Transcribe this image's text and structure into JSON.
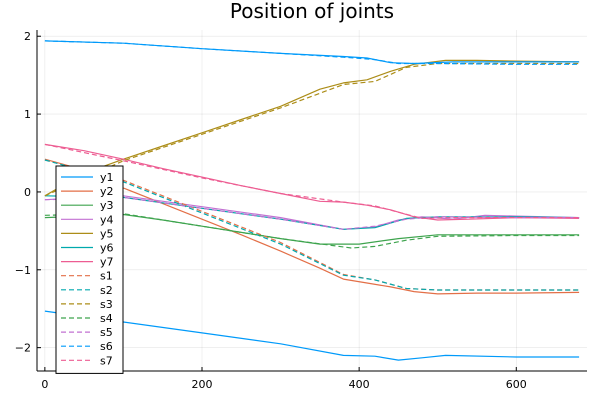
{
  "chart_data": {
    "type": "line",
    "title": "Position of joints",
    "xlabel": "",
    "ylabel": "",
    "xlim": [
      -10,
      690
    ],
    "ylim": [
      -2.3,
      2.08
    ],
    "xticks": [
      0,
      200,
      400,
      600
    ],
    "yticks": [
      -2,
      -1,
      0,
      1,
      2
    ],
    "xtick_labels": [
      "0",
      "200",
      "400",
      "600"
    ],
    "ytick_labels": [
      "−2",
      "−1",
      "0",
      "1",
      "2"
    ],
    "grid": true,
    "legend_position": "bottom-left",
    "series": [
      {
        "name": "y1",
        "color": "#009AFA",
        "dash": "solid",
        "points": [
          [
            0,
            -1.53
          ],
          [
            100,
            -1.67
          ],
          [
            200,
            -1.81
          ],
          [
            300,
            -1.95
          ],
          [
            380,
            -2.1
          ],
          [
            420,
            -2.11
          ],
          [
            450,
            -2.16
          ],
          [
            480,
            -2.13
          ],
          [
            510,
            -2.1
          ],
          [
            600,
            -2.12
          ],
          [
            680,
            -2.12
          ]
        ]
      },
      {
        "name": "y2",
        "color": "#E36F47",
        "dash": "solid",
        "points": [
          [
            0,
            0.42
          ],
          [
            50,
            0.28
          ],
          [
            100,
            0.05
          ],
          [
            150,
            -0.15
          ],
          [
            200,
            -0.35
          ],
          [
            250,
            -0.55
          ],
          [
            300,
            -0.76
          ],
          [
            350,
            -0.98
          ],
          [
            380,
            -1.12
          ],
          [
            410,
            -1.17
          ],
          [
            440,
            -1.22
          ],
          [
            470,
            -1.28
          ],
          [
            500,
            -1.31
          ],
          [
            550,
            -1.3
          ],
          [
            600,
            -1.3
          ],
          [
            680,
            -1.29
          ]
        ]
      },
      {
        "name": "y3",
        "color": "#3EA44E",
        "dash": "solid",
        "points": [
          [
            0,
            -0.33
          ],
          [
            100,
            -0.29
          ],
          [
            150,
            -0.36
          ],
          [
            200,
            -0.44
          ],
          [
            250,
            -0.52
          ],
          [
            300,
            -0.6
          ],
          [
            350,
            -0.67
          ],
          [
            400,
            -0.67
          ],
          [
            450,
            -0.6
          ],
          [
            500,
            -0.55
          ],
          [
            550,
            -0.55
          ],
          [
            600,
            -0.55
          ],
          [
            680,
            -0.55
          ]
        ]
      },
      {
        "name": "y4",
        "color": "#C271D2",
        "dash": "solid",
        "points": [
          [
            0,
            -0.1
          ],
          [
            100,
            -0.05
          ],
          [
            200,
            -0.19
          ],
          [
            300,
            -0.33
          ],
          [
            380,
            -0.48
          ],
          [
            420,
            -0.45
          ],
          [
            450,
            -0.36
          ],
          [
            480,
            -0.32
          ],
          [
            520,
            -0.35
          ],
          [
            560,
            -0.3
          ],
          [
            600,
            -0.31
          ],
          [
            680,
            -0.33
          ]
        ]
      },
      {
        "name": "y5",
        "color": "#AC8D18",
        "dash": "solid",
        "points": [
          [
            0,
            -0.05
          ],
          [
            50,
            0.24
          ],
          [
            100,
            0.42
          ],
          [
            150,
            0.59
          ],
          [
            200,
            0.76
          ],
          [
            250,
            0.93
          ],
          [
            300,
            1.1
          ],
          [
            350,
            1.32
          ],
          [
            380,
            1.4
          ],
          [
            410,
            1.44
          ],
          [
            440,
            1.55
          ],
          [
            470,
            1.64
          ],
          [
            510,
            1.69
          ],
          [
            550,
            1.69
          ],
          [
            600,
            1.68
          ],
          [
            680,
            1.67
          ]
        ]
      },
      {
        "name": "y6",
        "color": "#00A9AD",
        "dash": "solid",
        "points": [
          [
            0,
            -0.05
          ],
          [
            100,
            -0.07
          ],
          [
            200,
            -0.21
          ],
          [
            300,
            -0.35
          ],
          [
            380,
            -0.48
          ],
          [
            420,
            -0.46
          ],
          [
            460,
            -0.34
          ],
          [
            500,
            -0.32
          ],
          [
            560,
            -0.32
          ],
          [
            600,
            -0.32
          ],
          [
            680,
            -0.33
          ]
        ]
      },
      {
        "name": "y7",
        "color": "#ED5D92",
        "dash": "solid",
        "points": [
          [
            0,
            0.61
          ],
          [
            50,
            0.53
          ],
          [
            100,
            0.42
          ],
          [
            150,
            0.3
          ],
          [
            200,
            0.19
          ],
          [
            250,
            0.08
          ],
          [
            300,
            -0.02
          ],
          [
            350,
            -0.12
          ],
          [
            380,
            -0.13
          ],
          [
            410,
            -0.17
          ],
          [
            440,
            -0.23
          ],
          [
            470,
            -0.32
          ],
          [
            500,
            -0.36
          ],
          [
            540,
            -0.35
          ],
          [
            600,
            -0.33
          ],
          [
            680,
            -0.34
          ]
        ]
      },
      {
        "name": "s1",
        "color": "#E36F47",
        "dash": "dashed",
        "points": [
          [
            0,
            0.41
          ],
          [
            100,
            0.15
          ],
          [
            200,
            -0.25
          ],
          [
            300,
            -0.65
          ],
          [
            380,
            -1.06
          ],
          [
            420,
            -1.13
          ],
          [
            460,
            -1.24
          ],
          [
            500,
            -1.26
          ],
          [
            600,
            -1.26
          ],
          [
            680,
            -1.26
          ]
        ]
      },
      {
        "name": "s2",
        "color": "#00A9AD",
        "dash": "dashed",
        "points": [
          [
            0,
            0.41
          ],
          [
            100,
            0.13
          ],
          [
            200,
            -0.27
          ],
          [
            300,
            -0.67
          ],
          [
            380,
            -1.07
          ],
          [
            420,
            -1.13
          ],
          [
            460,
            -1.24
          ],
          [
            500,
            -1.26
          ],
          [
            600,
            -1.26
          ],
          [
            680,
            -1.26
          ]
        ]
      },
      {
        "name": "s3",
        "color": "#AC8D18",
        "dash": "dashed",
        "points": [
          [
            0,
            -0.05
          ],
          [
            100,
            0.4
          ],
          [
            200,
            0.74
          ],
          [
            300,
            1.08
          ],
          [
            380,
            1.38
          ],
          [
            420,
            1.42
          ],
          [
            460,
            1.6
          ],
          [
            500,
            1.65
          ],
          [
            600,
            1.65
          ],
          [
            680,
            1.65
          ]
        ]
      },
      {
        "name": "s4",
        "color": "#3EA44E",
        "dash": "dashed",
        "points": [
          [
            0,
            -0.3
          ],
          [
            100,
            -0.28
          ],
          [
            200,
            -0.44
          ],
          [
            300,
            -0.6
          ],
          [
            390,
            -0.72
          ],
          [
            420,
            -0.7
          ],
          [
            460,
            -0.62
          ],
          [
            500,
            -0.57
          ],
          [
            600,
            -0.56
          ],
          [
            680,
            -0.56
          ]
        ]
      },
      {
        "name": "s5",
        "color": "#C271D2",
        "dash": "dashed",
        "points": [
          [
            0,
            -0.1
          ],
          [
            100,
            -0.07
          ],
          [
            200,
            -0.21
          ],
          [
            300,
            -0.35
          ],
          [
            380,
            -0.48
          ],
          [
            420,
            -0.44
          ],
          [
            460,
            -0.35
          ],
          [
            500,
            -0.32
          ],
          [
            600,
            -0.33
          ],
          [
            680,
            -0.33
          ]
        ]
      },
      {
        "name": "s6",
        "color": "#009AFA",
        "dash": "dashed",
        "points": [
          [
            0,
            1.94
          ],
          [
            100,
            1.91
          ],
          [
            200,
            1.84
          ],
          [
            300,
            1.78
          ],
          [
            380,
            1.73
          ],
          [
            420,
            1.7
          ],
          [
            450,
            1.65
          ],
          [
            500,
            1.65
          ],
          [
            600,
            1.64
          ],
          [
            680,
            1.64
          ]
        ]
      },
      {
        "name": "s7",
        "color": "#ED5D92",
        "dash": "dashed",
        "points": [
          [
            0,
            0.61
          ],
          [
            100,
            0.4
          ],
          [
            200,
            0.18
          ],
          [
            300,
            -0.02
          ],
          [
            380,
            -0.13
          ],
          [
            420,
            -0.18
          ],
          [
            450,
            -0.26
          ],
          [
            480,
            -0.34
          ],
          [
            520,
            -0.33
          ],
          [
            600,
            -0.33
          ],
          [
            680,
            -0.33
          ]
        ]
      },
      {
        "name": "",
        "color": "#009AFA",
        "dash": "solid",
        "points": [
          [
            0,
            1.94
          ],
          [
            100,
            1.91
          ],
          [
            200,
            1.84
          ],
          [
            300,
            1.78
          ],
          [
            380,
            1.74
          ],
          [
            410,
            1.72
          ],
          [
            440,
            1.66
          ],
          [
            470,
            1.65
          ],
          [
            520,
            1.67
          ],
          [
            600,
            1.67
          ],
          [
            680,
            1.67
          ]
        ]
      }
    ]
  }
}
